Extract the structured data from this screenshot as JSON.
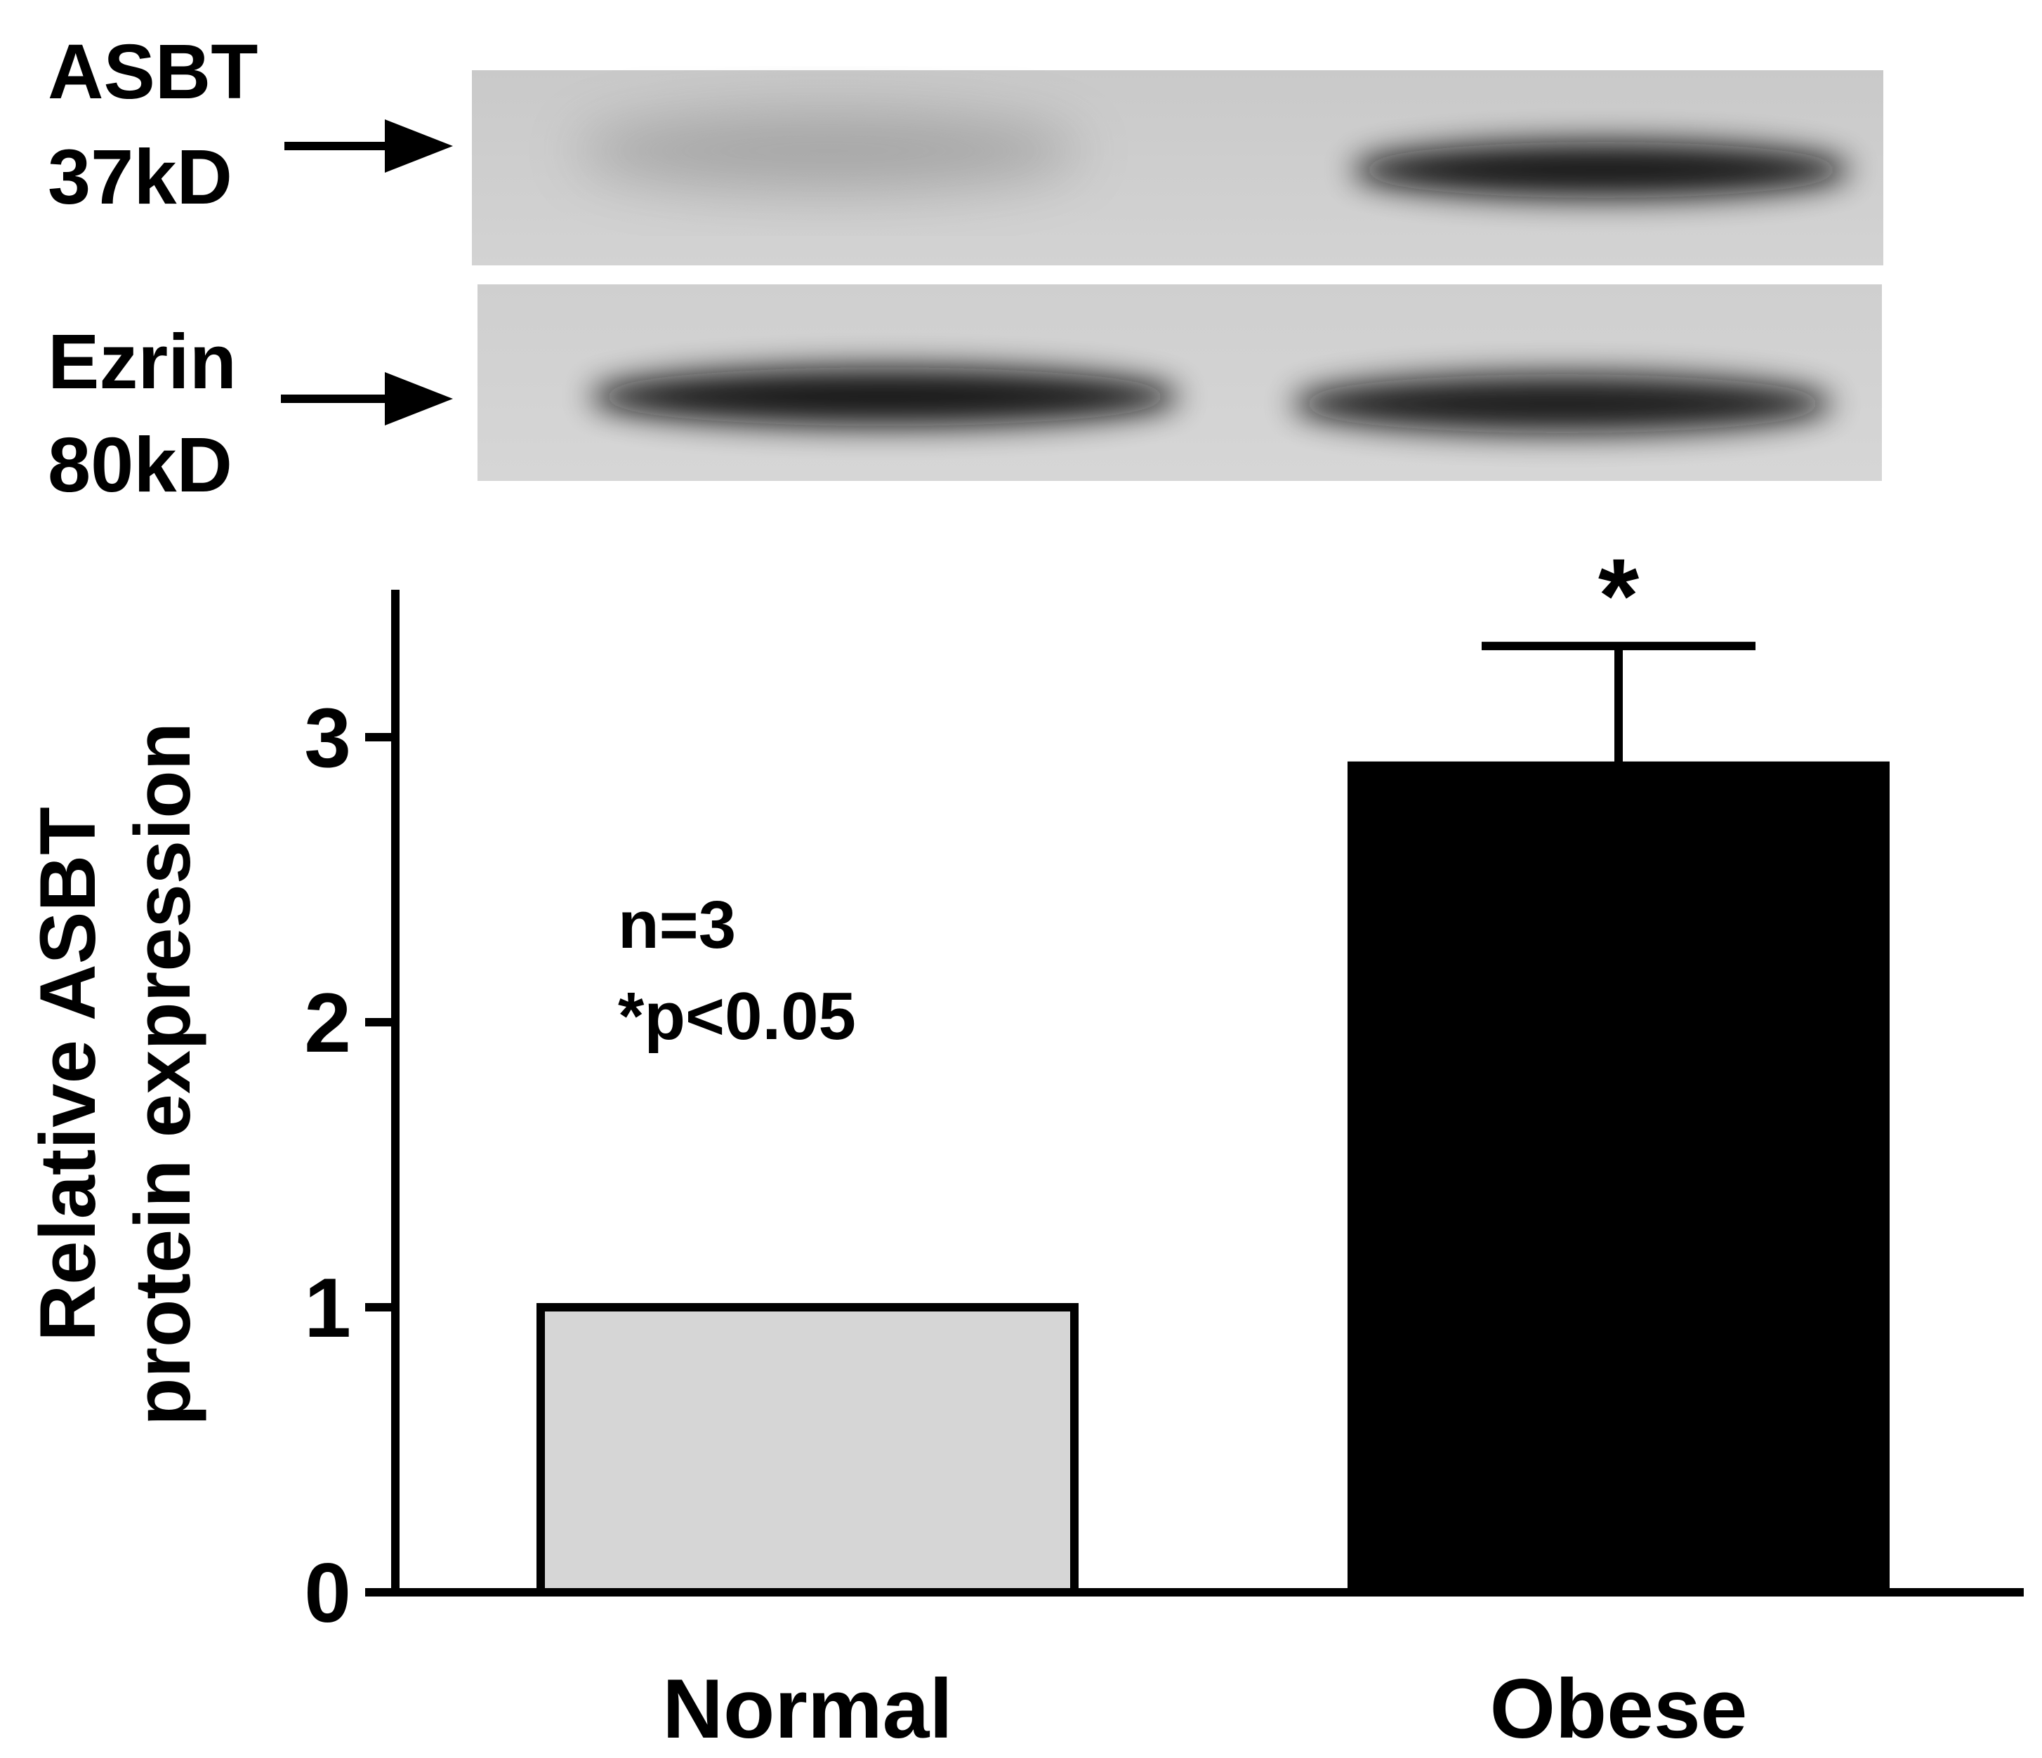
{
  "blot": {
    "rows": [
      {
        "label_line1": "ASBT",
        "label_line2": "37kD",
        "band_intensity": [
          0.35,
          0.95
        ]
      },
      {
        "label_line1": "Ezrin",
        "label_line2": "80kD",
        "band_intensity": [
          0.95,
          0.9
        ]
      }
    ]
  },
  "annotation": {
    "line1": "n=3",
    "line2": "*p<0.05"
  },
  "chart_data": {
    "type": "bar",
    "categories": [
      "Normal",
      "Obese"
    ],
    "values": [
      1.0,
      2.9
    ],
    "errors": [
      0,
      0.42
    ],
    "significance": [
      "",
      "*"
    ],
    "bar_colors": [
      "#d6d6d6",
      "#000000"
    ],
    "ylabel_line1": "Relative ASBT",
    "ylabel_line2": "protein expression",
    "ylim": [
      0,
      3.5
    ],
    "yticks": [
      "0",
      "1",
      "2",
      "3"
    ],
    "grid": false
  }
}
